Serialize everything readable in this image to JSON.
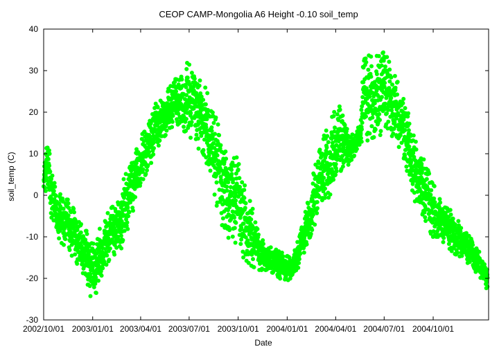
{
  "chart_data": {
    "type": "scatter",
    "title": "CEOP CAMP-Mongolia A6 Height -0.10 soil_temp",
    "xlabel": "Date",
    "ylabel": "soil_temp (C)",
    "ylim": [
      -30,
      40
    ],
    "y_ticks": [
      -30,
      -20,
      -10,
      0,
      10,
      20,
      30,
      40
    ],
    "x_range_days": [
      0,
      835
    ],
    "x_ticks": [
      {
        "day": 0,
        "label": "2002/10/01"
      },
      {
        "day": 92,
        "label": "2003/01/01"
      },
      {
        "day": 182,
        "label": "2003/04/01"
      },
      {
        "day": 273,
        "label": "2003/07/01"
      },
      {
        "day": 365,
        "label": "2003/10/01"
      },
      {
        "day": 457,
        "label": "2004/01/01"
      },
      {
        "day": 548,
        "label": "2004/04/01"
      },
      {
        "day": 639,
        "label": "2004/07/01"
      },
      {
        "day": 731,
        "label": "2004/10/01"
      }
    ],
    "series": [
      {
        "name": "soil_temp",
        "color": "#00ff00",
        "envelope_day": [
          0,
          2,
          5,
          10,
          20,
          30,
          45,
          60,
          75,
          85,
          95,
          105,
          120,
          135,
          150,
          165,
          180,
          195,
          210,
          225,
          240,
          255,
          270,
          285,
          300,
          315,
          330,
          345,
          360,
          375,
          390,
          405,
          420,
          435,
          450,
          465,
          480,
          495,
          505,
          525,
          545,
          560,
          575,
          595,
          598,
          605,
          620,
          635,
          650,
          665,
          680,
          695,
          710,
          725,
          740,
          755,
          770,
          785,
          800,
          815,
          830,
          833
        ],
        "envelope_min": [
          0,
          2,
          0,
          -3,
          -8,
          -11,
          -13,
          -16,
          -19,
          -24,
          -25,
          -21,
          -16,
          -15,
          -12,
          -5,
          2,
          6,
          10,
          14,
          16,
          16,
          15,
          12,
          10,
          4,
          -6,
          -10,
          -12,
          -15,
          -17,
          -18,
          -18,
          -19,
          -21,
          -20,
          -17,
          -12,
          -8,
          -3,
          2,
          5,
          8,
          12,
          13,
          13,
          14,
          14,
          15,
          12,
          5,
          -1,
          -5,
          -10,
          -10,
          -12,
          -14,
          -15,
          -17,
          -19,
          -22,
          -24
        ],
        "envelope_max": [
          4,
          9,
          14,
          11,
          3,
          1,
          -1,
          -4,
          -7,
          -10,
          -12,
          -8,
          -4,
          -2,
          4,
          8,
          13,
          18,
          22,
          24,
          27,
          29,
          32,
          30,
          27,
          22,
          16,
          12,
          10,
          4,
          -2,
          -10,
          -12,
          -13,
          -14,
          -15,
          -10,
          -2,
          5,
          14,
          20,
          22,
          14,
          17,
          31,
          34,
          33,
          35,
          33,
          27,
          22,
          14,
          10,
          5,
          0,
          -3,
          -4,
          -8,
          -10,
          -13,
          -17,
          -18
        ]
      }
    ]
  }
}
